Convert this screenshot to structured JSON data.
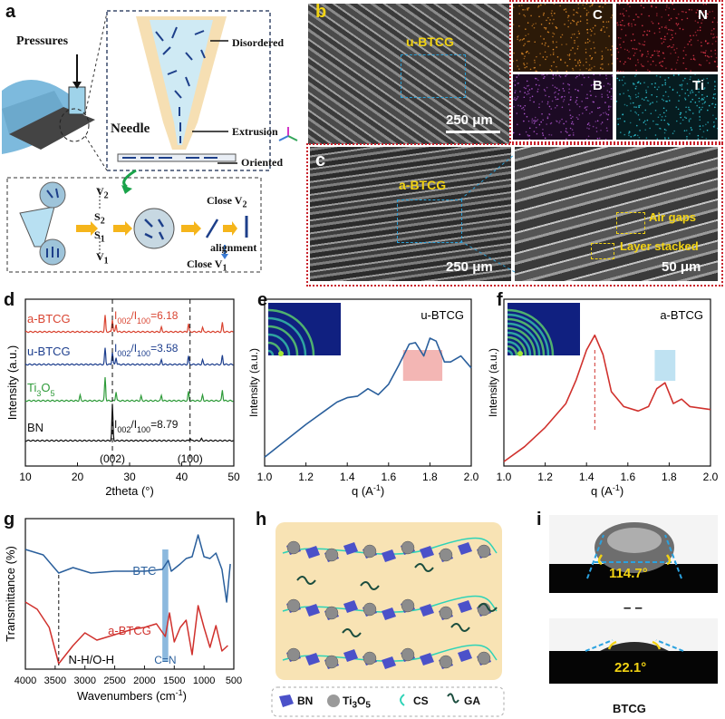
{
  "panels": {
    "a": {
      "label": "a",
      "pressures": "Pressures",
      "disordered": "Disordered",
      "needle": "Needle",
      "extrusion": "Extrusion",
      "oriented": "Oriented",
      "v2": "V",
      "v2sub": "2",
      "s2": "S",
      "s2sub": "2",
      "s1": "S",
      "s1sub": "1",
      "v1": "V",
      "v1sub": "1",
      "close_v2": "Close V",
      "close_v2sub": "2",
      "alignment": "alignment",
      "close_v1": "Close V",
      "close_v1sub": "1"
    },
    "b": {
      "label": "b",
      "sample": "u-BTCG",
      "scale": "250 μm",
      "maps": [
        "C",
        "N",
        "B",
        "Ti"
      ],
      "map_colors": [
        "#e08c2a",
        "#e0374a",
        "#b45ad6",
        "#2fc6d6"
      ]
    },
    "c": {
      "label": "c",
      "sample": "a-BTCG",
      "scale_left": "250 μm",
      "air_gaps": "Air gaps",
      "layer_stacked": "Layer stacked",
      "scale_right": "50 μm"
    },
    "d": {
      "label": "d"
    },
    "e": {
      "label": "e"
    },
    "f": {
      "label": "f"
    },
    "g": {
      "label": "g"
    },
    "h": {
      "label": "h",
      "legend": [
        {
          "name": "BN"
        },
        {
          "name": "Ti",
          "sub": "3",
          "tail": "O",
          "sub2": "5"
        },
        {
          "name": "CS"
        },
        {
          "name": "GA"
        }
      ]
    },
    "i": {
      "label": "i",
      "angle_top": "114.7°",
      "angle_bottom": "22.1°",
      "sep": "– –",
      "caption": "BTCG"
    }
  },
  "chart_data": [
    {
      "id": "d",
      "type": "line",
      "title": "",
      "xlabel": "2theta (°)",
      "ylabel": "Intensity (a.u.)",
      "xlim": [
        10,
        50
      ],
      "xticks": [
        10,
        20,
        30,
        40,
        50
      ],
      "series": [
        {
          "name": "a-BTCG",
          "color": "#d94431",
          "annotation": "I",
          "ann_sub1": "002",
          "ann_mid": "/I",
          "ann_sub2": "100",
          "ann_val": "=6.18",
          "peaks": [
            [
              25.3,
              18
            ],
            [
              26.7,
              14
            ],
            [
              27.4,
              8
            ],
            [
              36.1,
              5
            ],
            [
              41.3,
              9
            ],
            [
              44,
              5
            ],
            [
              47.8,
              10
            ]
          ]
        },
        {
          "name": "u-BTCG",
          "color": "#1e3f8e",
          "annotation": "I",
          "ann_sub1": "002",
          "ann_mid": "/I",
          "ann_sub2": "100",
          "ann_val": "=3.58",
          "peaks": [
            [
              25.3,
              18
            ],
            [
              26.7,
              14
            ],
            [
              27.4,
              8
            ],
            [
              36.1,
              5
            ],
            [
              41.3,
              9
            ],
            [
              44,
              5
            ],
            [
              47.8,
              10
            ]
          ]
        },
        {
          "name": "Ti",
          "name_sub": "3",
          "name_tail": "O",
          "name_sub2": "5",
          "color": "#2f9b3a",
          "peaks": [
            [
              25.3,
              26
            ],
            [
              20.5,
              6
            ],
            [
              27.4,
              10
            ],
            [
              32.2,
              5
            ],
            [
              36.1,
              6
            ],
            [
              41.3,
              10
            ],
            [
              44,
              6
            ],
            [
              47.8,
              12
            ]
          ]
        },
        {
          "name": "BN",
          "color": "#111111",
          "annotation": "I",
          "ann_sub1": "002",
          "ann_mid": "/I",
          "ann_sub2": "100",
          "ann_val": "=8.79",
          "peaks": [
            [
              26.7,
              40
            ],
            [
              41.6,
              3
            ],
            [
              43.8,
              2
            ]
          ]
        }
      ],
      "markers": [
        {
          "x": 26.7,
          "label": "(002)"
        },
        {
          "x": 41.6,
          "label": "(100)"
        }
      ]
    },
    {
      "id": "e",
      "type": "line",
      "sample": "u-BTCG",
      "xlabel": "q (A",
      "xlabel_sup": "-1",
      "xlabel_tail": ")",
      "ylabel": "Intensity (a.u.)",
      "xlim": [
        1.0,
        2.0
      ],
      "xticks": [
        "1.0",
        "1.2",
        "1.4",
        "1.6",
        "1.8",
        "2.0"
      ],
      "color": "#2a5f9c",
      "highlight": [
        1.67,
        1.86
      ],
      "highlight_color": "#f3b6b4",
      "x": [
        1.0,
        1.1,
        1.2,
        1.3,
        1.35,
        1.4,
        1.45,
        1.5,
        1.55,
        1.6,
        1.65,
        1.7,
        1.73,
        1.77,
        1.8,
        1.83,
        1.87,
        1.9,
        1.95,
        2.0
      ],
      "y": [
        0.06,
        0.17,
        0.28,
        0.38,
        0.43,
        0.46,
        0.47,
        0.52,
        0.48,
        0.55,
        0.68,
        0.82,
        0.83,
        0.74,
        0.86,
        0.84,
        0.7,
        0.7,
        0.74,
        0.66
      ]
    },
    {
      "id": "f",
      "type": "line",
      "sample": "a-BTCG",
      "xlabel": "q (A",
      "xlabel_sup": "-1",
      "xlabel_tail": ")",
      "ylabel": "Intensity (a.u.)",
      "xlim": [
        1.0,
        2.0
      ],
      "xticks": [
        "1.0",
        "1.2",
        "1.4",
        "1.6",
        "1.8",
        "2.0"
      ],
      "color": "#d0312d",
      "highlight": [
        1.73,
        1.83
      ],
      "highlight_color": "#bfe2f2",
      "peak_line": 1.44,
      "x": [
        1.0,
        1.1,
        1.2,
        1.3,
        1.35,
        1.4,
        1.44,
        1.48,
        1.52,
        1.58,
        1.65,
        1.7,
        1.74,
        1.78,
        1.82,
        1.86,
        1.9,
        2.0
      ],
      "y": [
        0.03,
        0.13,
        0.26,
        0.42,
        0.58,
        0.78,
        0.88,
        0.75,
        0.5,
        0.4,
        0.37,
        0.4,
        0.52,
        0.56,
        0.42,
        0.45,
        0.4,
        0.38
      ]
    },
    {
      "id": "g",
      "type": "line",
      "xlabel": "Wavenumbers (cm",
      "xlabel_sup": "-1",
      "xlabel_tail": ")",
      "ylabel": "Transmittance (%)",
      "xlim": [
        4000,
        500
      ],
      "xticks": [
        4000,
        3500,
        3000,
        2500,
        2000,
        1500,
        1000,
        500
      ],
      "series": [
        {
          "name": "BTC",
          "color": "#2a5f9c"
        },
        {
          "name": "a-BTCG",
          "color": "#d0312d"
        }
      ],
      "annotations": [
        {
          "text": "N-H/O-H",
          "x": 3440
        },
        {
          "text": "C=N",
          "x": 1650
        }
      ]
    }
  ]
}
